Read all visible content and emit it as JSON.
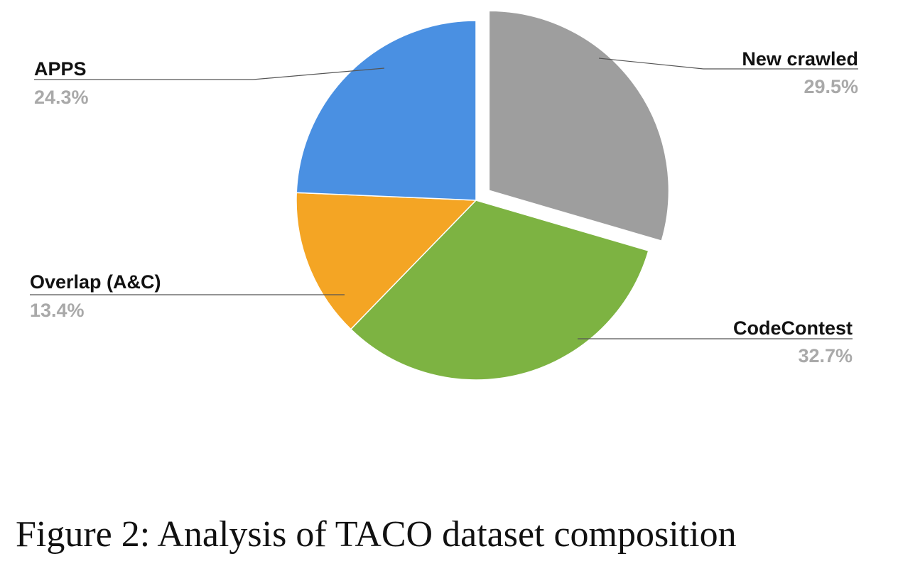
{
  "caption": "Figure 2: Analysis of TACO dataset composition",
  "chart_data": {
    "type": "pie",
    "title": "",
    "start_angle_deg": 0,
    "direction": "clockwise",
    "exploded": [
      "New crawled"
    ],
    "pct_label_color": "#a9a9a9",
    "slices": [
      {
        "label": "New crawled",
        "value": 29.5,
        "pct_label": "29.5%",
        "color": "#9e9e9e"
      },
      {
        "label": "CodeContest",
        "value": 32.7,
        "pct_label": "32.7%",
        "color": "#7db342"
      },
      {
        "label": "Overlap (A&C)",
        "value": 13.4,
        "pct_label": "13.4%",
        "color": "#f4a524"
      },
      {
        "label": "APPS",
        "value": 24.3,
        "pct_label": "24.3%",
        "color": "#4a90e2"
      }
    ]
  }
}
